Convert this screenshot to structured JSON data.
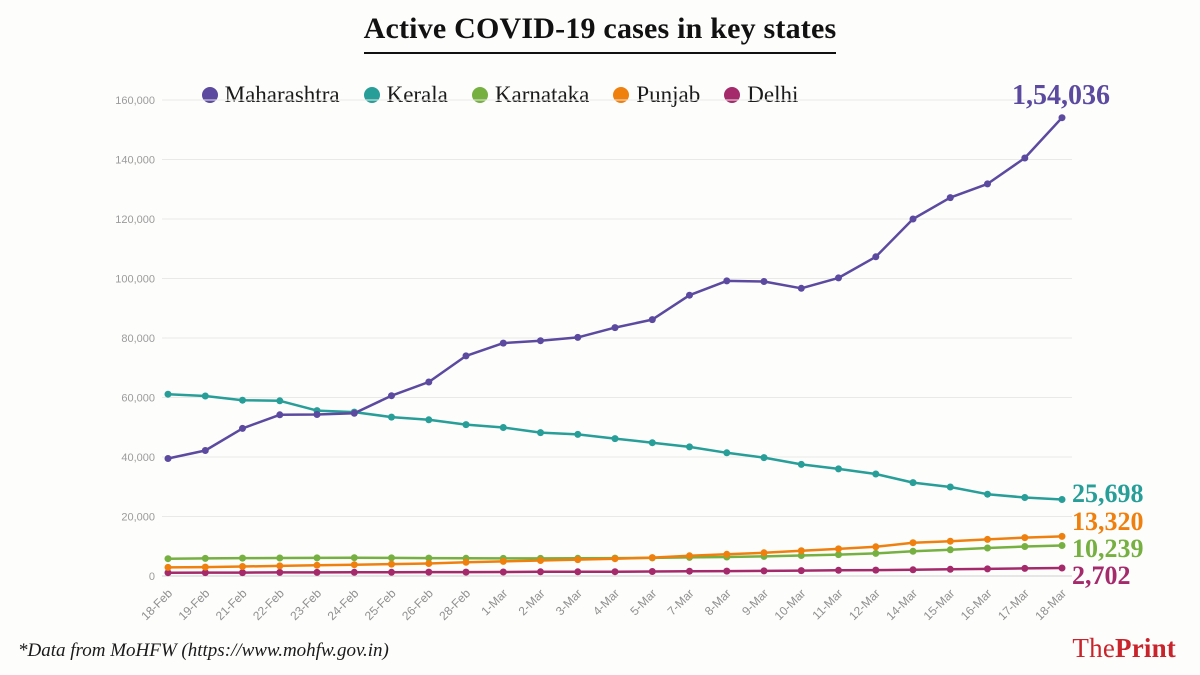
{
  "title": "Active COVID-19 cases in key states",
  "chart_data": {
    "type": "line",
    "title": "Active COVID-19 cases in key states",
    "x": [
      "18-Feb",
      "19-Feb",
      "21-Feb",
      "22-Feb",
      "23-Feb",
      "24-Feb",
      "25-Feb",
      "26-Feb",
      "28-Feb",
      "1-Mar",
      "2-Mar",
      "3-Mar",
      "4-Mar",
      "5-Mar",
      "7-Mar",
      "8-Mar",
      "9-Mar",
      "10-Mar",
      "11-Mar",
      "12-Mar",
      "14-Mar",
      "15-Mar",
      "16-Mar",
      "17-Mar",
      "18-Mar"
    ],
    "ylim": [
      0,
      160000
    ],
    "yticks": [
      0,
      20000,
      40000,
      60000,
      80000,
      100000,
      120000,
      140000,
      160000
    ],
    "grid": true,
    "legend_position": "top",
    "series": [
      {
        "name": "Maharashtra",
        "color": "#5b4a9f",
        "end_label": "1,54,036",
        "values": [
          39500,
          42200,
          49600,
          54200,
          54300,
          54700,
          60600,
          65200,
          74000,
          78300,
          79100,
          80200,
          83500,
          86200,
          94400,
          99200,
          99000,
          96700,
          100200,
          107300,
          120000,
          127200,
          131800,
          140500,
          154036
        ]
      },
      {
        "name": "Kerala",
        "color": "#279e98",
        "end_label": "25,698",
        "values": [
          61100,
          60500,
          59100,
          58900,
          55600,
          55100,
          53400,
          52500,
          50900,
          49900,
          48200,
          47600,
          46200,
          44800,
          43400,
          41400,
          39800,
          37500,
          36000,
          34300,
          31400,
          29900,
          27500,
          26400,
          25698
        ]
      },
      {
        "name": "Karnataka",
        "color": "#76b041",
        "end_label": "10,239",
        "values": [
          5800,
          5900,
          6000,
          6050,
          6100,
          6150,
          6100,
          6000,
          5950,
          5900,
          5900,
          5950,
          6000,
          6100,
          6250,
          6400,
          6600,
          6900,
          7200,
          7600,
          8300,
          8800,
          9400,
          9900,
          10239
        ]
      },
      {
        "name": "Punjab",
        "color": "#ef800e",
        "end_label": "13,320",
        "values": [
          2900,
          3000,
          3200,
          3400,
          3600,
          3800,
          4000,
          4200,
          4600,
          4900,
          5200,
          5500,
          5800,
          6200,
          6800,
          7300,
          7800,
          8500,
          9100,
          9800,
          11200,
          11700,
          12300,
          12900,
          13320
        ]
      },
      {
        "name": "Delhi",
        "color": "#a52a6b",
        "end_label": "2,702",
        "values": [
          1100,
          1150,
          1150,
          1200,
          1200,
          1250,
          1250,
          1300,
          1300,
          1350,
          1400,
          1400,
          1450,
          1500,
          1600,
          1650,
          1700,
          1800,
          1900,
          2000,
          2100,
          2250,
          2400,
          2550,
          2702
        ]
      }
    ]
  },
  "footer": {
    "source_note": "*Data from MoHFW (https://www.mohfw.gov.in)",
    "brand_the": "The",
    "brand_print": "Print",
    "brand_color": "#c9242b"
  }
}
